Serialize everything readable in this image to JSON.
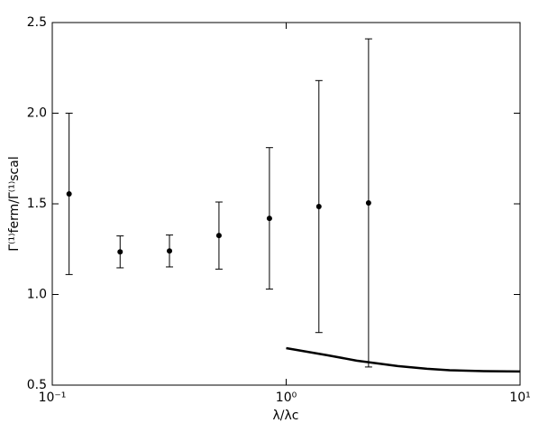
{
  "chart_data": {
    "type": "scatter",
    "x_label": "λ/λc",
    "y_label": "Γ⁽¹⁾ferm/Γ⁽¹⁾scal",
    "x_scale": "log",
    "xlim": [
      0.1,
      10
    ],
    "xticks": [
      {
        "value": 0.1,
        "label": "10⁻¹"
      },
      {
        "value": 1,
        "label": "10⁰"
      },
      {
        "value": 10,
        "label": "10¹"
      }
    ],
    "ylim": [
      0.5,
      2.5
    ],
    "yticks": [
      0.5,
      {
        "value": 1,
        "label": "1.0"
      },
      1.5,
      {
        "value": 2,
        "label": "2.0"
      },
      2.5
    ],
    "series": [
      {
        "type": "errorbar",
        "color": "#000000",
        "x": [
          0.118,
          0.195,
          0.317,
          0.516,
          0.848,
          1.38,
          2.25
        ],
        "values": [
          1.555,
          1.235,
          1.24,
          1.325,
          1.42,
          1.485,
          1.505
        ],
        "errors": [
          0.445,
          0.088,
          0.088,
          0.185,
          0.39,
          0.695,
          0.905
        ]
      },
      {
        "type": "line",
        "color": "#000000",
        "x": [
          1,
          1.5,
          2,
          3,
          4,
          5,
          7,
          10
        ],
        "values": [
          0.704,
          0.665,
          0.635,
          0.605,
          0.59,
          0.582,
          0.577,
          0.575
        ]
      }
    ]
  }
}
